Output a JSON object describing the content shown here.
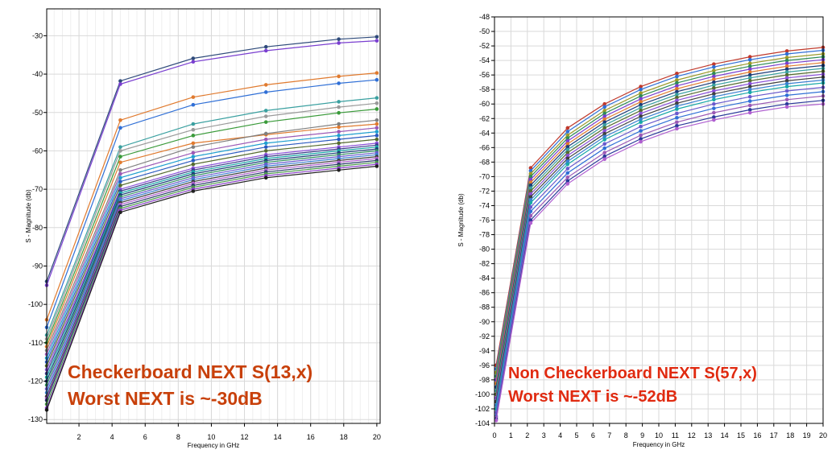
{
  "chart_data": [
    {
      "type": "line",
      "xlabel": "Frequency in GHz",
      "ylabel": "S - Magnitude (db)",
      "xlim": [
        0.05,
        20.2
      ],
      "ylim": [
        -131,
        -23
      ],
      "x_ticks": [
        "2",
        "4",
        "6",
        "8",
        "10",
        "12",
        "14",
        "16",
        "18",
        "20"
      ],
      "y_ticks": [
        "-30",
        "-40",
        "-50",
        "-60",
        "-70",
        "-80",
        "-90",
        "-100",
        "-110",
        "-120",
        "-130"
      ],
      "grid": true,
      "annotation": [
        "Checkerboard NEXT S(13,x)",
        "Worst NEXT is ~-30dB"
      ],
      "x": [
        0.05,
        4.5,
        8.9,
        13.3,
        17.7,
        20
      ],
      "series": [
        {
          "color": "#2e4a7a",
          "values": [
            -94,
            -41.8,
            -35.9,
            -32.9,
            -30.9,
            -30.3
          ]
        },
        {
          "color": "#7a3fd0",
          "values": [
            -95,
            -42.6,
            -36.8,
            -33.9,
            -31.9,
            -31.3
          ]
        },
        {
          "color": "#e07a2e",
          "values": [
            -104,
            -52,
            -46,
            -42.8,
            -40.6,
            -39.7
          ]
        },
        {
          "color": "#2f6fd6",
          "values": [
            -106,
            -54,
            -48,
            -44.7,
            -42.4,
            -41.5
          ]
        },
        {
          "color": "#3aa0a0",
          "values": [
            -108,
            -59,
            -53,
            -49.5,
            -47.2,
            -46.2
          ]
        },
        {
          "color": "#9a9a9a",
          "values": [
            -109,
            -60,
            -54.5,
            -51,
            -48.6,
            -47.6
          ]
        },
        {
          "color": "#3a9a3a",
          "values": [
            -110,
            -61.5,
            -56,
            -52.5,
            -50.1,
            -49.1
          ]
        },
        {
          "color": "#e07a2e",
          "values": [
            -111,
            -63,
            -58,
            -55.8,
            -53.8,
            -53
          ]
        },
        {
          "color": "#7f7f7f",
          "values": [
            -112,
            -65,
            -59,
            -55.5,
            -53,
            -52
          ]
        },
        {
          "color": "#9b59b6",
          "values": [
            -113,
            -66,
            -60.5,
            -57,
            -55,
            -54
          ]
        },
        {
          "color": "#1f9fcf",
          "values": [
            -114,
            -67,
            -61.5,
            -58,
            -56,
            -55
          ]
        },
        {
          "color": "#2a5ac0",
          "values": [
            -115,
            -68,
            -62.5,
            -59,
            -57,
            -56
          ]
        },
        {
          "color": "#556b2f",
          "values": [
            -116,
            -69,
            -63.5,
            -60,
            -58,
            -57
          ]
        },
        {
          "color": "#8a4fd8",
          "values": [
            -117,
            -70,
            -64.5,
            -61,
            -59,
            -58
          ]
        },
        {
          "color": "#3c3c8c",
          "values": [
            -118,
            -70.5,
            -65,
            -61.5,
            -59.5,
            -58.5
          ]
        },
        {
          "color": "#18a8a8",
          "values": [
            -119,
            -71,
            -65.5,
            -62,
            -60,
            -59
          ]
        },
        {
          "color": "#1d3d7a",
          "values": [
            -120,
            -71.5,
            -66,
            -62.5,
            -60.5,
            -59.5
          ]
        },
        {
          "color": "#2f8f5f",
          "values": [
            -121,
            -72,
            -66.5,
            -63,
            -61,
            -60
          ]
        },
        {
          "color": "#6a5acd",
          "values": [
            -122,
            -72.5,
            -67,
            -63.5,
            -61.5,
            -60.5
          ]
        },
        {
          "color": "#3a7fd0",
          "values": [
            -123,
            -73,
            -67.5,
            -64,
            -62,
            -61
          ]
        },
        {
          "color": "#404040",
          "values": [
            -124,
            -73.5,
            -68,
            -64.5,
            -62.5,
            -61.5
          ]
        },
        {
          "color": "#b060d0",
          "values": [
            -124.5,
            -74,
            -68.5,
            -65,
            -63,
            -62
          ]
        },
        {
          "color": "#2a3a6a",
          "values": [
            -125,
            -74.5,
            -69,
            -65.5,
            -63.5,
            -62.5
          ]
        },
        {
          "color": "#4a9a4a",
          "values": [
            -126,
            -75,
            -69.5,
            -66,
            -64,
            -63
          ]
        },
        {
          "color": "#8a3fc8",
          "values": [
            -127,
            -75.5,
            -70,
            -66.5,
            -64.5,
            -63.5
          ]
        },
        {
          "color": "#202020",
          "values": [
            -127.5,
            -76,
            -70.5,
            -67,
            -65,
            -64
          ]
        }
      ]
    },
    {
      "type": "line",
      "xlabel": "Frequency in GHz",
      "ylabel": "S - Magnitude (db)",
      "xlim": [
        0,
        20
      ],
      "ylim": [
        -104,
        -48
      ],
      "x_ticks": [
        "0",
        "1",
        "2",
        "3",
        "4",
        "5",
        "6",
        "7",
        "8",
        "9",
        "10",
        "11",
        "12",
        "13",
        "14",
        "15",
        "16",
        "17",
        "18",
        "19",
        "20"
      ],
      "y_ticks": [
        "-48",
        "-50",
        "-52",
        "-54",
        "-56",
        "-58",
        "-60",
        "-62",
        "-64",
        "-66",
        "-68",
        "-70",
        "-72",
        "-74",
        "-76",
        "-78",
        "-80",
        "-82",
        "-84",
        "-86",
        "-88",
        "-90",
        "-92",
        "-94",
        "-96",
        "-98",
        "-100",
        "-102",
        "-104"
      ],
      "grid": true,
      "annotation": [
        "Non Checkerboard NEXT S(57,x)",
        "Worst NEXT is ~-52dB"
      ],
      "x": [
        0.1,
        2.2,
        4.45,
        6.7,
        8.9,
        11.1,
        13.35,
        15.55,
        17.8,
        20
      ],
      "series": [
        {
          "color": "#c0392b",
          "values": [
            -96,
            -68.8,
            -63.3,
            -60,
            -57.6,
            -55.8,
            -54.5,
            -53.5,
            -52.7,
            -52.2
          ]
        },
        {
          "color": "#2f6fd6",
          "values": [
            -96.5,
            -69.2,
            -63.8,
            -60.4,
            -58,
            -56.2,
            -54.9,
            -53.9,
            -53.1,
            -52.6
          ]
        },
        {
          "color": "#9a9a2a",
          "values": [
            -97,
            -69.6,
            -64.3,
            -60.9,
            -58.5,
            -56.7,
            -55.4,
            -54.4,
            -53.6,
            -53.1
          ]
        },
        {
          "color": "#2e8b57",
          "values": [
            -97.5,
            -70,
            -64.7,
            -61.3,
            -58.9,
            -57.1,
            -55.8,
            -54.8,
            -54,
            -53.5
          ]
        },
        {
          "color": "#7a3fd0",
          "values": [
            -98,
            -70.4,
            -65.1,
            -61.7,
            -59.3,
            -57.5,
            -56.2,
            -55.2,
            -54.4,
            -53.9
          ]
        },
        {
          "color": "#e07a2e",
          "values": [
            -98.5,
            -70.8,
            -65.5,
            -62.1,
            -59.7,
            -57.9,
            -56.6,
            -55.6,
            -54.8,
            -54.3
          ]
        },
        {
          "color": "#1d3d7a",
          "values": [
            -99,
            -71.2,
            -65.9,
            -62.5,
            -60.1,
            -58.3,
            -57,
            -56,
            -55.2,
            -54.7
          ]
        },
        {
          "color": "#3aa0a0",
          "values": [
            -99.5,
            -71.6,
            -66.3,
            -62.9,
            -60.5,
            -58.7,
            -57.4,
            -56.4,
            -55.6,
            -55.1
          ]
        },
        {
          "color": "#556b2f",
          "values": [
            -100,
            -72,
            -66.7,
            -63.3,
            -60.9,
            -59.1,
            -57.8,
            -56.8,
            -56,
            -55.5
          ]
        },
        {
          "color": "#8a4fd8",
          "values": [
            -100.5,
            -72.4,
            -67.1,
            -63.7,
            -61.3,
            -59.5,
            -58.2,
            -57.2,
            -56.4,
            -55.9
          ]
        },
        {
          "color": "#404040",
          "values": [
            -101,
            -72.8,
            -67.5,
            -64.1,
            -61.7,
            -59.9,
            -58.6,
            -57.6,
            -56.8,
            -56.3
          ]
        },
        {
          "color": "#3a7fd0",
          "values": [
            -101.5,
            -73.2,
            -67.9,
            -64.5,
            -62.1,
            -60.3,
            -59,
            -58,
            -57.2,
            -56.7
          ]
        },
        {
          "color": "#18a8a8",
          "values": [
            -102,
            -73.6,
            -68.3,
            -64.9,
            -62.5,
            -60.7,
            -59.4,
            -58.4,
            -57.6,
            -57.1
          ]
        },
        {
          "color": "#6a5acd",
          "values": [
            -102.5,
            -74.2,
            -68.9,
            -65.5,
            -63.1,
            -61.3,
            -60,
            -59,
            -58.2,
            -57.7
          ]
        },
        {
          "color": "#2f6fd6",
          "values": [
            -103,
            -74.8,
            -69.5,
            -66.1,
            -63.7,
            -61.9,
            -60.6,
            -59.6,
            -58.8,
            -58.3
          ]
        },
        {
          "color": "#9b59b6",
          "values": [
            -103.2,
            -75.4,
            -70.1,
            -66.7,
            -64.3,
            -62.5,
            -61.2,
            -60.2,
            -59.4,
            -58.9
          ]
        },
        {
          "color": "#2a3a9a",
          "values": [
            -103.4,
            -76,
            -70.6,
            -67.2,
            -64.8,
            -63,
            -61.8,
            -60.8,
            -60,
            -59.5
          ]
        },
        {
          "color": "#b060d0",
          "values": [
            -103.6,
            -76.4,
            -71,
            -67.6,
            -65.2,
            -63.4,
            -62.2,
            -61.2,
            -60.4,
            -60
          ]
        }
      ]
    }
  ]
}
